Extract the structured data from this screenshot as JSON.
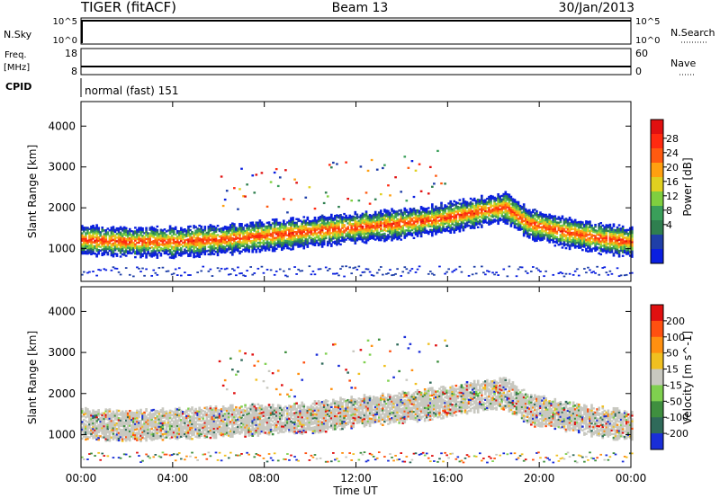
{
  "header": {
    "radar": "TIGER (fitACF)",
    "beam": "Beam 13",
    "date": "30/Jan/2013"
  },
  "top_panels": {
    "nsky": {
      "label": "N.Sky",
      "left_ticks": [
        "10^5",
        "10^0"
      ],
      "right_ticks": [
        "10^5",
        "10^0"
      ],
      "right_label": "N.Search"
    },
    "freq": {
      "label": "Freq.",
      "unit": "[MHz]",
      "left_ticks": [
        "18",
        "8"
      ],
      "right_ticks": [
        "60",
        "0"
      ],
      "right_label": "Nave"
    },
    "cpid": {
      "label": "CPID",
      "text": "normal (fast) 151"
    }
  },
  "chart_data": [
    {
      "type": "heatmap",
      "panel": "power",
      "ylabel": "Slant Range [km]",
      "yticks": [
        "1000",
        "2000",
        "3000",
        "4000"
      ],
      "ylim": [
        200,
        4600
      ],
      "colorbar": {
        "label": "Power [dB]",
        "ticks": [
          "28",
          "24",
          "20",
          "16",
          "12",
          "8",
          "4"
        ],
        "colors": [
          "#0a1fe0",
          "#1f3fa8",
          "#2f7f4f",
          "#3a9f5a",
          "#7fcf3f",
          "#e0d020",
          "#ffa010",
          "#ff5a10",
          "#ff2a10",
          "#e01010"
        ]
      },
      "series": [
        {
          "x": [
            0,
            2,
            4,
            6,
            8,
            10,
            12,
            14,
            15.5,
            17,
            18.5,
            19.5,
            21,
            22.5,
            24
          ],
          "y": [
            1200,
            1150,
            1150,
            1200,
            1300,
            1400,
            1500,
            1600,
            1700,
            1850,
            2000,
            1600,
            1400,
            1250,
            1150
          ]
        }
      ]
    },
    {
      "type": "heatmap",
      "panel": "velocity",
      "ylabel": "Slant Range [km]",
      "yticks": [
        "1000",
        "2000",
        "3000",
        "4000"
      ],
      "ylim": [
        200,
        4600
      ],
      "colorbar": {
        "label": "Velocity [m s^-1]",
        "ticks": [
          "200",
          "100",
          "50",
          "15",
          "-15",
          "-50",
          "-100",
          "-200"
        ],
        "colors": [
          "#1a2ed8",
          "#2f6a5a",
          "#3f8f3f",
          "#7fd04f",
          "#c8c8c0",
          "#f0c020",
          "#ff9010",
          "#ff5010",
          "#e01010"
        ]
      },
      "series": [
        {
          "x": [
            0,
            2,
            4,
            6,
            8,
            10,
            12,
            14,
            15.5,
            17,
            18.5,
            19.5,
            21,
            22.5,
            24
          ],
          "y": [
            1250,
            1200,
            1250,
            1300,
            1350,
            1400,
            1550,
            1650,
            1750,
            1900,
            2000,
            1600,
            1450,
            1300,
            1200
          ]
        }
      ]
    }
  ],
  "xaxis": {
    "label": "Time UT",
    "ticks": [
      "00:00",
      "04:00",
      "08:00",
      "12:00",
      "16:00",
      "20:00",
      "00:00"
    ]
  }
}
